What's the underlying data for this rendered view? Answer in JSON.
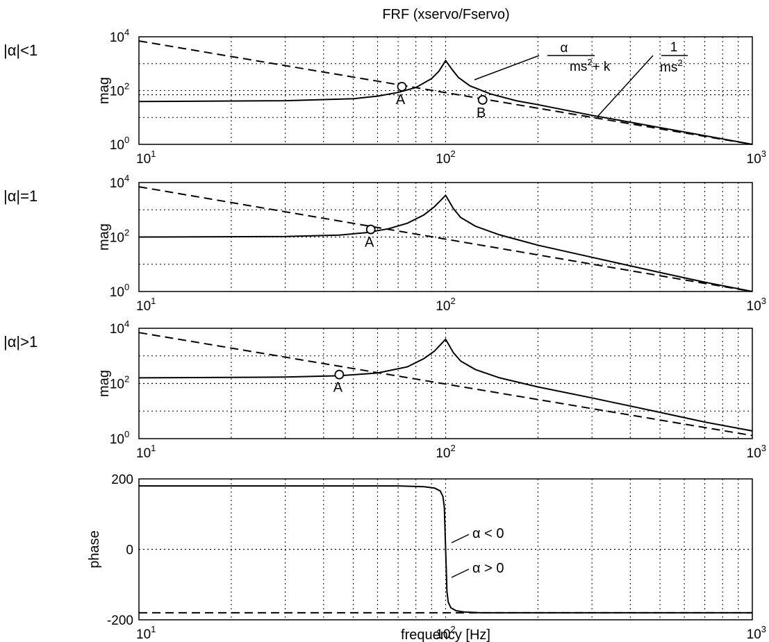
{
  "figure_title": "FRF (xservo/Fservo)",
  "row_labels": [
    "|α|<1",
    "|α|=1",
    "|α|>1"
  ],
  "chart_data": [
    {
      "type": "line",
      "title": "FRF (xservo/Fservo)",
      "xlabel": "",
      "ylabel": "mag",
      "xscale": "log",
      "yscale": "log",
      "xlim": [
        10,
        1000
      ],
      "ylim": [
        1,
        10000
      ],
      "x_ticks": [
        {
          "base": "10",
          "exp": "1"
        },
        {
          "base": "10",
          "exp": "2"
        },
        {
          "base": "10",
          "exp": "3"
        }
      ],
      "y_ticks": [
        {
          "base": "10",
          "exp": "0"
        },
        {
          "base": "10",
          "exp": "2"
        },
        {
          "base": "10",
          "exp": "4"
        }
      ],
      "grid": true,
      "series": [
        {
          "style": "solid",
          "x": [
            10,
            30,
            50,
            60,
            70,
            80,
            90,
            95,
            100,
            105,
            110,
            120,
            140,
            170,
            200,
            300,
            500,
            700,
            1000
          ],
          "y": [
            39,
            42,
            50,
            62,
            85,
            130,
            280,
            520,
            1300,
            600,
            310,
            150,
            75,
            42,
            30,
            12,
            4.2,
            2.1,
            1
          ]
        },
        {
          "style": "dashed",
          "x": [
            10,
            1000
          ],
          "y": [
            7000,
            1
          ]
        },
        {
          "style": "dotted",
          "x": [
            10,
            1000
          ],
          "y": [
            70,
            70
          ]
        }
      ],
      "markers": [
        {
          "label": "A",
          "x": 72,
          "y": 140
        },
        {
          "label": "B",
          "x": 132,
          "y": 45
        }
      ],
      "annotations": [
        {
          "numerator": "α",
          "denominator": "ms",
          "exponent": "2",
          "tail": "+ k"
        },
        {
          "numerator": "1",
          "denominator": "ms",
          "exponent": "2",
          "tail": ""
        }
      ]
    },
    {
      "type": "line",
      "ylabel": "mag",
      "xscale": "log",
      "yscale": "log",
      "xlim": [
        10,
        1000
      ],
      "ylim": [
        1,
        10000
      ],
      "x_ticks": [
        {
          "base": "10",
          "exp": "1"
        },
        {
          "base": "10",
          "exp": "2"
        },
        {
          "base": "10",
          "exp": "3"
        }
      ],
      "y_ticks": [
        {
          "base": "10",
          "exp": "0"
        },
        {
          "base": "10",
          "exp": "2"
        },
        {
          "base": "10",
          "exp": "4"
        }
      ],
      "grid": true,
      "series": [
        {
          "style": "solid",
          "x": [
            10,
            30,
            45,
            55,
            65,
            75,
            85,
            92,
            100,
            106,
            112,
            125,
            150,
            200,
            300,
            500,
            700,
            1000
          ],
          "y": [
            100,
            104,
            118,
            145,
            200,
            320,
            650,
            1300,
            3400,
            1100,
            520,
            250,
            120,
            50,
            18,
            5,
            2.2,
            1
          ]
        },
        {
          "style": "dashed",
          "x": [
            10,
            1000
          ],
          "y": [
            7000,
            1
          ]
        },
        {
          "style": "dotted",
          "x": [
            10,
            1000
          ],
          "y": [
            100,
            100
          ]
        }
      ],
      "markers": [
        {
          "label": "A",
          "x": 57,
          "y": 190
        }
      ]
    },
    {
      "type": "line",
      "ylabel": "mag",
      "xscale": "log",
      "yscale": "log",
      "xlim": [
        10,
        1000
      ],
      "ylim": [
        1,
        10000
      ],
      "x_ticks": [
        {
          "base": "10",
          "exp": "1"
        },
        {
          "base": "10",
          "exp": "2"
        },
        {
          "base": "10",
          "exp": "3"
        }
      ],
      "y_ticks": [
        {
          "base": "10",
          "exp": "0"
        },
        {
          "base": "10",
          "exp": "2"
        },
        {
          "base": "10",
          "exp": "4"
        }
      ],
      "grid": true,
      "series": [
        {
          "style": "solid",
          "x": [
            10,
            30,
            45,
            60,
            75,
            85,
            92,
            100,
            106,
            112,
            125,
            150,
            200,
            300,
            500,
            700,
            1000
          ],
          "y": [
            160,
            170,
            190,
            240,
            400,
            800,
            1500,
            4000,
            1300,
            650,
            320,
            160,
            75,
            30,
            9,
            4,
            1.9
          ]
        },
        {
          "style": "dashed",
          "x": [
            10,
            1000
          ],
          "y": [
            7000,
            1.3
          ]
        },
        {
          "style": "dotted",
          "x": [
            10,
            1000
          ],
          "y": [
            100,
            100
          ]
        }
      ],
      "markers": [
        {
          "label": "A",
          "x": 45,
          "y": 210
        }
      ]
    },
    {
      "type": "line",
      "xlabel": "frequency [Hz]",
      "ylabel": "phase",
      "xscale": "log",
      "yscale": "linear",
      "xlim": [
        10,
        1000
      ],
      "ylim": [
        -200,
        200
      ],
      "x_ticks": [
        {
          "base": "10",
          "exp": "1"
        },
        {
          "base": "10",
          "exp": "2"
        },
        {
          "base": "10",
          "exp": "3"
        }
      ],
      "y_ticks": [
        {
          "value": 200,
          "label": "200"
        },
        {
          "value": 0,
          "label": "0"
        },
        {
          "value": -200,
          "label": "-200"
        }
      ],
      "grid": true,
      "series": [
        {
          "style": "solid",
          "x": [
            10,
            70,
            85,
            92,
            96,
            98,
            99,
            100,
            101,
            102,
            104,
            108,
            115,
            130,
            160,
            1000
          ],
          "y": [
            180,
            180,
            178,
            174,
            166,
            150,
            120,
            0,
            -120,
            -150,
            -166,
            -174,
            -178,
            -180,
            -180,
            -180
          ]
        },
        {
          "style": "dashed",
          "x": [
            10,
            1000
          ],
          "y": [
            -180,
            -180
          ]
        },
        {
          "style": "dotted",
          "x": [
            10,
            1000
          ],
          "y": [
            0,
            0
          ]
        }
      ],
      "annotations": [
        {
          "text": "α < 0"
        },
        {
          "text": "α > 0"
        }
      ]
    }
  ]
}
